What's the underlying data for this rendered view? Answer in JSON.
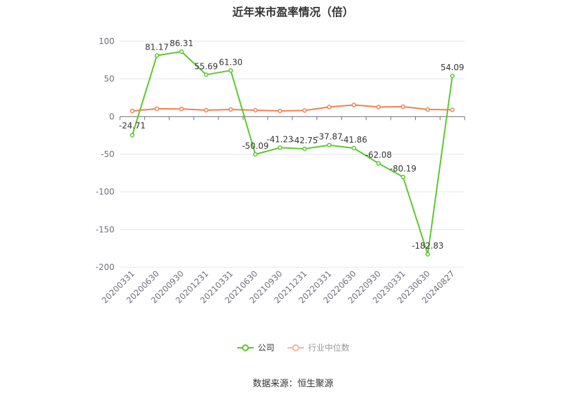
{
  "chart_data": {
    "type": "line",
    "title": "近年来市盈率情况（倍）",
    "xlabel": "",
    "ylabel": "",
    "ylim": [
      -200,
      100
    ],
    "yticks": [
      100,
      50,
      0,
      -50,
      -100,
      -150,
      -200
    ],
    "categories": [
      "20200331",
      "20200630",
      "20200930",
      "20201231",
      "20210331",
      "20210630",
      "20210930",
      "20211231",
      "20220331",
      "20220630",
      "20220930",
      "20230331",
      "20230630",
      "20240827"
    ],
    "series": [
      {
        "name": "公司",
        "color": "#5cc62c",
        "values": [
          -24.71,
          81.17,
          86.31,
          55.69,
          61.3,
          -50.09,
          -41.23,
          -42.75,
          -37.87,
          -41.86,
          -62.08,
          -80.19,
          -182.83,
          54.09
        ],
        "labels": [
          "-24.71",
          "81.17",
          "86.31",
          "55.69",
          "61.30",
          "-50.09",
          "-41.23",
          "-42.75",
          "-37.87",
          "-41.86",
          "-62.08",
          "-80.19",
          "-182.83",
          "54.09"
        ]
      },
      {
        "name": "行业中位数",
        "color": "#f0804f",
        "values": [
          7.5,
          10.5,
          10.2,
          8.5,
          9.5,
          8.5,
          7.5,
          8.2,
          12.8,
          15.5,
          12.8,
          13.2,
          9.5,
          9.0
        ]
      }
    ],
    "grid": true,
    "legend_position": "bottom"
  },
  "legend": {
    "company": "公司",
    "industry": "行业中位数"
  },
  "source": "数据来源：恒生聚源"
}
